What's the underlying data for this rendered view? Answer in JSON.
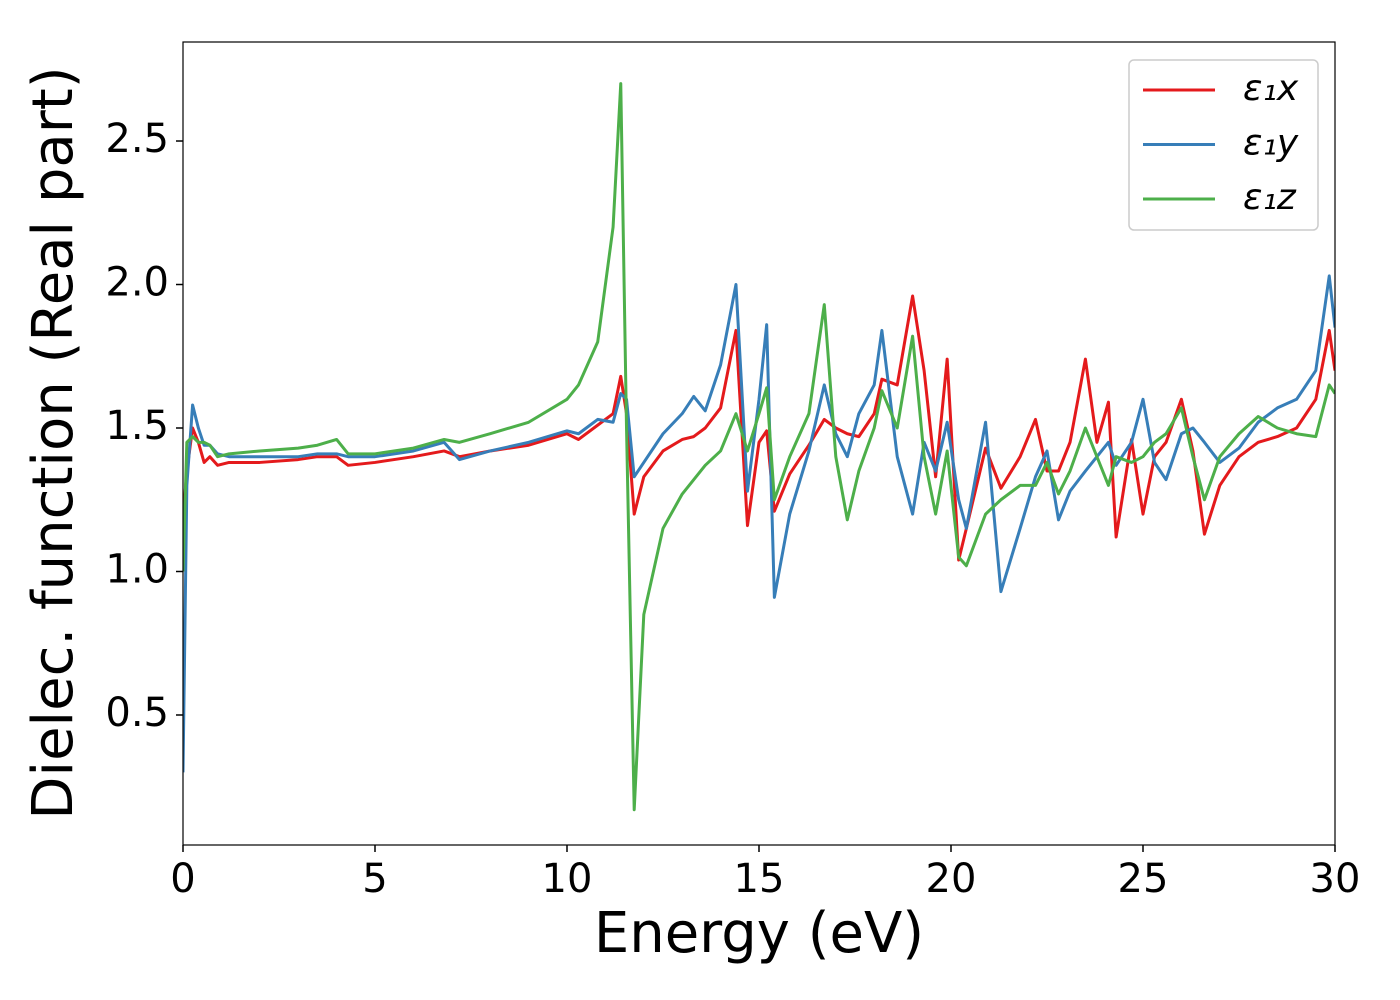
{
  "chart_data": {
    "type": "line",
    "xlabel": "Energy (eV)",
    "ylabel": "Dielec. function (Real part)",
    "x": [
      0,
      0.1,
      0.25,
      0.4,
      0.55,
      0.7,
      0.9,
      1.2,
      2,
      3,
      3.5,
      4,
      4.3,
      5,
      6,
      6.8,
      7.2,
      8,
      9,
      10,
      10.3,
      10.8,
      11.2,
      11.4,
      11.55,
      11.75,
      12,
      12.5,
      13,
      13.3,
      13.6,
      14,
      14.4,
      14.7,
      15,
      15.2,
      15.4,
      15.8,
      16.3,
      16.7,
      17,
      17.3,
      17.6,
      18,
      18.2,
      18.6,
      19,
      19.3,
      19.6,
      19.9,
      20.2,
      20.4,
      20.9,
      21.3,
      21.8,
      22.2,
      22.5,
      22.8,
      23.1,
      23.5,
      23.8,
      24.1,
      24.3,
      24.7,
      25,
      25.3,
      25.6,
      26,
      26.3,
      26.6,
      27,
      27.5,
      28,
      28.5,
      29,
      29.5,
      29.85,
      30
    ],
    "series": [
      {
        "name": "ε₁x",
        "color": "#e41a1c",
        "values": [
          1.18,
          1.35,
          1.5,
          1.45,
          1.38,
          1.4,
          1.37,
          1.38,
          1.38,
          1.39,
          1.4,
          1.4,
          1.37,
          1.38,
          1.4,
          1.42,
          1.4,
          1.42,
          1.44,
          1.48,
          1.46,
          1.51,
          1.55,
          1.68,
          1.55,
          1.2,
          1.33,
          1.42,
          1.46,
          1.47,
          1.5,
          1.57,
          1.84,
          1.16,
          1.45,
          1.49,
          1.21,
          1.34,
          1.44,
          1.53,
          1.5,
          1.48,
          1.47,
          1.55,
          1.67,
          1.65,
          1.96,
          1.7,
          1.33,
          1.74,
          1.04,
          1.15,
          1.43,
          1.29,
          1.4,
          1.53,
          1.35,
          1.35,
          1.45,
          1.74,
          1.45,
          1.59,
          1.12,
          1.46,
          1.2,
          1.4,
          1.45,
          1.6,
          1.42,
          1.13,
          1.3,
          1.4,
          1.45,
          1.47,
          1.5,
          1.6,
          1.84,
          1.7
        ]
      },
      {
        "name": "ε₁y",
        "color": "#377eb8",
        "values": [
          0.3,
          1.3,
          1.58,
          1.5,
          1.44,
          1.44,
          1.41,
          1.4,
          1.4,
          1.4,
          1.41,
          1.41,
          1.4,
          1.4,
          1.42,
          1.45,
          1.39,
          1.42,
          1.45,
          1.49,
          1.48,
          1.53,
          1.52,
          1.62,
          1.6,
          1.33,
          1.38,
          1.48,
          1.55,
          1.61,
          1.56,
          1.72,
          2.0,
          1.28,
          1.6,
          1.86,
          0.91,
          1.2,
          1.42,
          1.65,
          1.48,
          1.4,
          1.55,
          1.65,
          1.84,
          1.4,
          1.2,
          1.45,
          1.35,
          1.52,
          1.25,
          1.15,
          1.52,
          0.93,
          1.15,
          1.33,
          1.42,
          1.18,
          1.28,
          1.35,
          1.4,
          1.45,
          1.37,
          1.45,
          1.6,
          1.38,
          1.32,
          1.48,
          1.5,
          1.45,
          1.38,
          1.43,
          1.52,
          1.57,
          1.6,
          1.7,
          2.03,
          1.85
        ]
      },
      {
        "name": "ε₁z",
        "color": "#4daf4a",
        "values": [
          1.0,
          1.45,
          1.47,
          1.45,
          1.45,
          1.44,
          1.4,
          1.41,
          1.42,
          1.43,
          1.44,
          1.46,
          1.41,
          1.41,
          1.43,
          1.46,
          1.45,
          1.48,
          1.52,
          1.6,
          1.65,
          1.8,
          2.2,
          2.7,
          1.5,
          0.17,
          0.85,
          1.15,
          1.27,
          1.32,
          1.37,
          1.42,
          1.55,
          1.42,
          1.55,
          1.64,
          1.25,
          1.4,
          1.55,
          1.93,
          1.4,
          1.18,
          1.35,
          1.5,
          1.63,
          1.5,
          1.82,
          1.4,
          1.2,
          1.42,
          1.05,
          1.02,
          1.2,
          1.25,
          1.3,
          1.3,
          1.38,
          1.27,
          1.35,
          1.5,
          1.4,
          1.3,
          1.4,
          1.38,
          1.4,
          1.45,
          1.48,
          1.57,
          1.4,
          1.25,
          1.4,
          1.48,
          1.54,
          1.5,
          1.48,
          1.47,
          1.65,
          1.62
        ]
      }
    ],
    "xlim": [
      0,
      30
    ],
    "xticks": [
      0,
      5,
      10,
      15,
      20,
      25,
      30
    ],
    "ylim": [
      0.047,
      2.845
    ],
    "yticks": [
      0.5,
      {
        "value": 1.0,
        "label": "1.0"
      },
      1.5,
      {
        "value": 2.0,
        "label": "2.0"
      },
      2.5
    ],
    "grid": false,
    "legend": "upper right"
  }
}
